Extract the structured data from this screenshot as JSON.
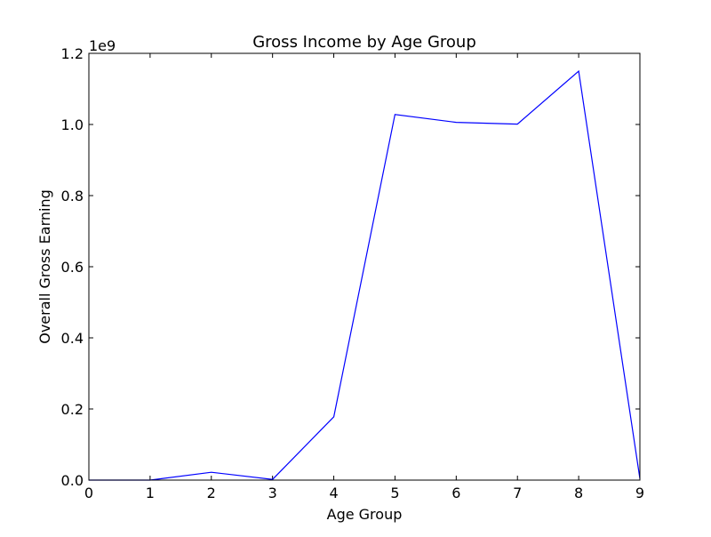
{
  "chart_data": {
    "type": "line",
    "title": "Gross Income by Age Group",
    "xlabel": "Age Group",
    "ylabel": "Overall Gross Earning",
    "y_scale_label": "1e9",
    "xlim": [
      0,
      9
    ],
    "ylim": [
      0,
      1.2
    ],
    "y_scale_factor": 1000000000,
    "grid": false,
    "legend": "none",
    "x_ticks": [
      "0",
      "1",
      "2",
      "3",
      "4",
      "5",
      "6",
      "7",
      "8",
      "9"
    ],
    "y_ticks": [
      "0.0",
      "0.2",
      "0.4",
      "0.6",
      "0.8",
      "1.0",
      "1.2"
    ],
    "series": [
      {
        "color": "#0000ff",
        "x": [
          0,
          1,
          2,
          3,
          4,
          5,
          6,
          7,
          8,
          9
        ],
        "y": [
          0.0,
          0.0,
          0.022,
          0.002,
          0.178,
          1.028,
          1.006,
          1.001,
          1.15,
          0.004
        ]
      }
    ]
  }
}
